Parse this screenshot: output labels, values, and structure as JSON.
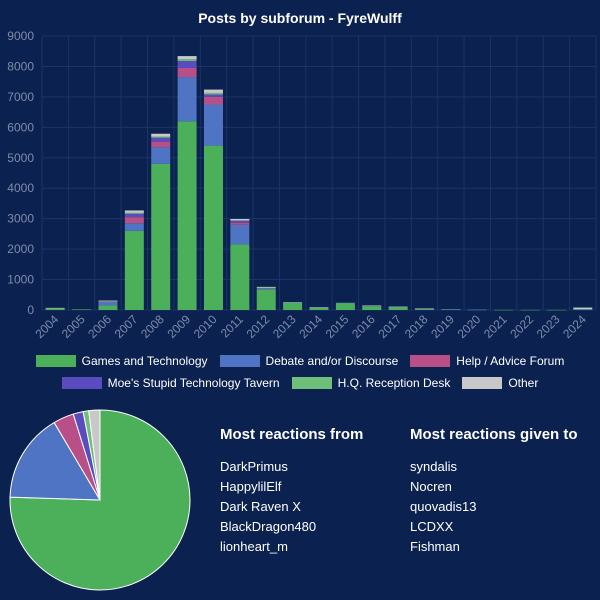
{
  "chart_data": [
    {
      "type": "bar",
      "stacked": true,
      "title": "Posts by subforum - FyreWulff",
      "categories": [
        "2004",
        "2005",
        "2006",
        "2007",
        "2008",
        "2009",
        "2010",
        "2011",
        "2012",
        "2013",
        "2014",
        "2015",
        "2016",
        "2017",
        "2018",
        "2019",
        "2020",
        "2021",
        "2022",
        "2023",
        "2024"
      ],
      "ylim": [
        0,
        9000
      ],
      "yticks": [
        0,
        1000,
        2000,
        3000,
        4000,
        5000,
        6000,
        7000,
        8000,
        9000
      ],
      "grid": true,
      "legend": "bottom",
      "series": [
        {
          "name": "Games and Technology",
          "color": "#4caf5a",
          "values": [
            60,
            20,
            150,
            2600,
            4800,
            6200,
            5400,
            2150,
            680,
            240,
            80,
            230,
            130,
            100,
            40,
            20,
            10,
            5,
            5,
            5,
            20
          ]
        },
        {
          "name": "Debate and/or Discourse",
          "color": "#4f74c4",
          "values": [
            0,
            0,
            120,
            250,
            550,
            1450,
            1350,
            650,
            40,
            10,
            5,
            10,
            10,
            5,
            5,
            5,
            5,
            0,
            0,
            0,
            10
          ]
        },
        {
          "name": "Help / Advice Forum",
          "color": "#b84f86",
          "values": [
            0,
            0,
            10,
            200,
            180,
            300,
            250,
            70,
            10,
            0,
            0,
            0,
            0,
            0,
            0,
            0,
            0,
            0,
            0,
            0,
            0
          ]
        },
        {
          "name": "Moe's Stupid Technology Tavern",
          "color": "#5a4cbf",
          "values": [
            0,
            0,
            0,
            110,
            130,
            230,
            80,
            60,
            0,
            0,
            0,
            0,
            0,
            0,
            0,
            0,
            0,
            0,
            0,
            0,
            0
          ]
        },
        {
          "name": "H.Q. Reception Desk",
          "color": "#6fbf7a",
          "values": [
            0,
            0,
            10,
            30,
            40,
            60,
            50,
            15,
            10,
            0,
            0,
            0,
            0,
            0,
            0,
            0,
            0,
            0,
            0,
            0,
            0
          ]
        },
        {
          "name": "Other",
          "color": "#c8c8c8",
          "values": [
            10,
            0,
            20,
            80,
            90,
            100,
            110,
            45,
            20,
            5,
            5,
            0,
            10,
            5,
            5,
            0,
            0,
            0,
            0,
            0,
            50
          ]
        }
      ]
    },
    {
      "type": "pie",
      "slices": [
        {
          "name": "Games and Technology",
          "value": 75.5,
          "color": "#4caf5a"
        },
        {
          "name": "Debate and/or Discourse",
          "value": 16.0,
          "color": "#4f74c4"
        },
        {
          "name": "Help / Advice Forum",
          "value": 3.7,
          "color": "#b84f86"
        },
        {
          "name": "Moe's Stupid Technology Tavern",
          "value": 1.8,
          "color": "#5a4cbf"
        },
        {
          "name": "H.Q. Reception Desk",
          "value": 1.0,
          "color": "#6fbf7a"
        },
        {
          "name": "Other",
          "value": 2.0,
          "color": "#c8c8c8"
        }
      ]
    }
  ],
  "reactions_from": {
    "heading": "Most reactions from",
    "users": [
      "DarkPrimus",
      "HappylilElf",
      "Dark Raven X",
      "BlackDragon480",
      "lionheart_m"
    ]
  },
  "reactions_to": {
    "heading": "Most reactions given to",
    "users": [
      "syndalis",
      "Nocren",
      "quovadis13",
      "LCDXX",
      "Fishman"
    ]
  },
  "colors": {
    "background": "#0b2150",
    "grid": "#1c3466",
    "tick_text": "#7f8cab"
  }
}
